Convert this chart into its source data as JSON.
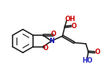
{
  "bg_color": "#ffffff",
  "line_color": "#1a1a1a",
  "N_color": "#2020c0",
  "O_color": "#cc0000",
  "HO_color": "#2020c0",
  "linewidth": 1.1,
  "fontsize": 5.8,
  "fig_width": 1.36,
  "fig_height": 0.92,
  "dpi": 100,
  "xlim": [
    0,
    9.5
  ],
  "ylim": [
    0,
    6.5
  ]
}
